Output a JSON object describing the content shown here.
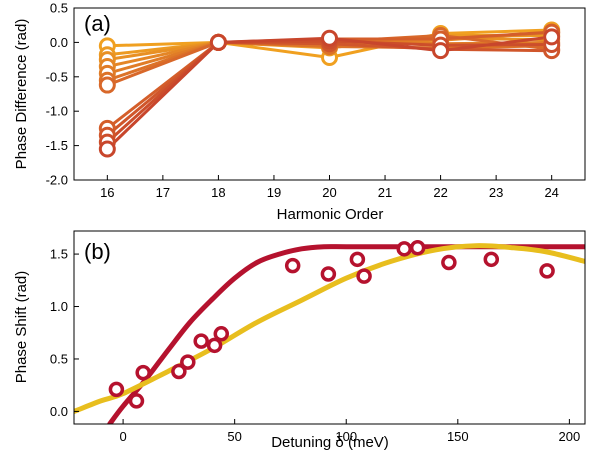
{
  "chart_data": [
    {
      "panel": "(a)",
      "type": "line",
      "xlabel": "Harmonic Order",
      "ylabel": "Phase Difference (rad)",
      "xlim": [
        15.4,
        24.6
      ],
      "ylim": [
        -2.0,
        0.5
      ],
      "xticks": [
        16,
        17,
        18,
        19,
        20,
        21,
        22,
        23,
        24
      ],
      "yticks": [
        "0.5",
        "0.0",
        "-0.5",
        "-1.0",
        "-1.5",
        "-2.0"
      ],
      "x": [
        16,
        18,
        20,
        22,
        24
      ],
      "series": [
        {
          "color": "#f0a020",
          "values": [
            -0.05,
            0.0,
            -0.22,
            0.13,
            0.18
          ]
        },
        {
          "color": "#ec9a22",
          "values": [
            -0.18,
            0.0,
            -0.08,
            0.1,
            0.1
          ]
        },
        {
          "color": "#e89024",
          "values": [
            -0.25,
            0.0,
            -0.03,
            0.06,
            0.04
          ]
        },
        {
          "color": "#e48626",
          "values": [
            -0.35,
            0.0,
            0.0,
            0.03,
            0.14
          ]
        },
        {
          "color": "#e07c27",
          "values": [
            -0.45,
            0.0,
            0.03,
            -0.02,
            0.0
          ]
        },
        {
          "color": "#dc7228",
          "values": [
            -0.55,
            0.0,
            -0.06,
            -0.08,
            -0.05
          ]
        },
        {
          "color": "#d8682a",
          "values": [
            -0.62,
            0.0,
            0.01,
            0.1,
            -0.1
          ]
        },
        {
          "color": "#d45e2a",
          "values": [
            -1.25,
            0.0,
            0.05,
            0.05,
            0.15
          ]
        },
        {
          "color": "#d0562b",
          "values": [
            -1.35,
            0.0,
            -0.02,
            -0.1,
            -0.12
          ]
        },
        {
          "color": "#cc4e2b",
          "values": [
            -1.45,
            0.0,
            0.02,
            -0.04,
            -0.03
          ]
        },
        {
          "color": "#c8462c",
          "values": [
            -1.55,
            0.0,
            0.06,
            -0.12,
            0.08
          ]
        }
      ]
    },
    {
      "panel": "(b)",
      "type": "scatter",
      "xlabel": "Detuning δ (meV)",
      "ylabel": "Phase Shift (rad)",
      "xlim": [
        -22,
        207
      ],
      "ylim": [
        -0.12,
        1.72
      ],
      "xticks": [
        0,
        50,
        100,
        150,
        200
      ],
      "yticks": [
        "0.0",
        "0.5",
        "1.0",
        "1.5"
      ],
      "points": {
        "color": "#b5122e",
        "x": [
          -3,
          6,
          9,
          25,
          29,
          35,
          41,
          44,
          76,
          92,
          105,
          108,
          126,
          132,
          146,
          165,
          190
        ],
        "y": [
          0.21,
          0.1,
          0.37,
          0.38,
          0.47,
          0.67,
          0.63,
          0.74,
          1.39,
          1.31,
          1.45,
          1.29,
          1.55,
          1.56,
          1.42,
          1.45,
          1.34
        ]
      },
      "curves": [
        {
          "color": "#b5122e",
          "x": [
            -6,
            0,
            10,
            20,
            30,
            40,
            50,
            60,
            70,
            80,
            90,
            100,
            120,
            150,
            180,
            207
          ],
          "y": [
            -0.12,
            0.05,
            0.3,
            0.58,
            0.85,
            1.07,
            1.27,
            1.42,
            1.5,
            1.55,
            1.57,
            1.57,
            1.57,
            1.57,
            1.57,
            1.57
          ]
        },
        {
          "color": "#e8be1e",
          "x": [
            -22,
            -10,
            0,
            20,
            40,
            60,
            80,
            100,
            120,
            140,
            158,
            175,
            190,
            207
          ],
          "y": [
            0.0,
            0.1,
            0.17,
            0.38,
            0.6,
            0.85,
            1.06,
            1.27,
            1.43,
            1.54,
            1.58,
            1.56,
            1.52,
            1.43
          ]
        }
      ]
    }
  ]
}
